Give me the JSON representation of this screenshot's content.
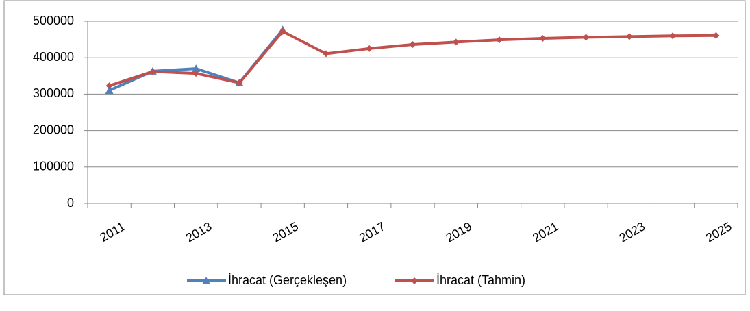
{
  "chart_data": {
    "type": "line",
    "categories": [
      "2011",
      null,
      "2013",
      null,
      "2015",
      null,
      "2017",
      null,
      "2019",
      null,
      "2021",
      null,
      "2023",
      null,
      "2025"
    ],
    "series": [
      {
        "name": "İhracat (Gerçekleşen)",
        "color": "#4f81bd",
        "marker": "triangle",
        "values": [
          310000,
          363000,
          370000,
          331000,
          477000,
          null,
          null,
          null,
          null,
          null,
          null,
          null,
          null,
          null,
          null
        ]
      },
      {
        "name": "İhracat (Tahmin)",
        "color": "#c0504d",
        "marker": "diamond",
        "values": [
          323000,
          362000,
          357000,
          331000,
          472000,
          411000,
          425000,
          436000,
          443000,
          449000,
          453000,
          456000,
          458000,
          460000,
          461000
        ]
      }
    ],
    "ylim": [
      0,
      500000
    ],
    "yticks": [
      0,
      100000,
      200000,
      300000,
      400000,
      500000
    ],
    "grid": true,
    "legend": "bottom"
  }
}
